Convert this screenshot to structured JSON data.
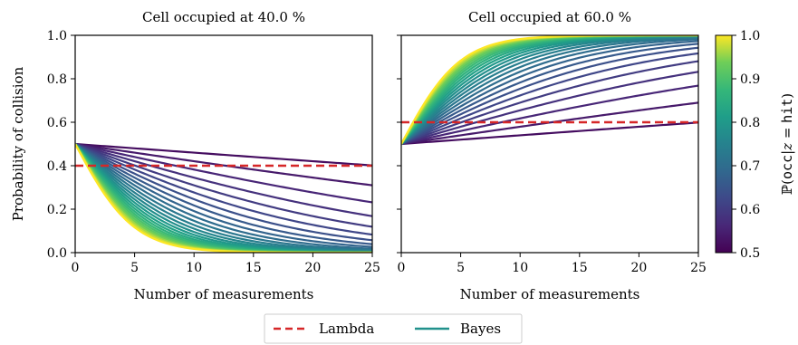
{
  "chart_data": [
    {
      "type": "line",
      "title": "Cell occupied at 40.0 %",
      "xlabel": "Number of measurements",
      "ylabel": "Probability of collision",
      "xlim": [
        0,
        25
      ],
      "ylim": [
        0.0,
        1.0
      ],
      "xticks": [
        "0",
        "5",
        "10",
        "15",
        "20",
        "25"
      ],
      "yticks": [
        "0.0",
        "0.2",
        "0.4",
        "0.6",
        "0.8",
        "1.0"
      ],
      "occupancy": 0.4,
      "lambda_value": 0.4,
      "bayes_p_hit_values": [
        0.52,
        0.54,
        0.56,
        0.58,
        0.6,
        0.62,
        0.64,
        0.66,
        0.68,
        0.7,
        0.72,
        0.74,
        0.76,
        0.78,
        0.8,
        0.82,
        0.84,
        0.86,
        0.88,
        0.9,
        0.92,
        0.94,
        0.96,
        0.98,
        1.0
      ],
      "bayes_start": 0.5
    },
    {
      "type": "line",
      "title": "Cell occupied at 60.0 %",
      "xlabel": "Number of measurements",
      "ylabel": "",
      "xlim": [
        0,
        25
      ],
      "ylim": [
        0.0,
        1.0
      ],
      "xticks": [
        "0",
        "5",
        "10",
        "15",
        "20",
        "25"
      ],
      "yticks": [],
      "occupancy": 0.6,
      "lambda_value": 0.6,
      "bayes_p_hit_values": [
        0.52,
        0.54,
        0.56,
        0.58,
        0.6,
        0.62,
        0.64,
        0.66,
        0.68,
        0.7,
        0.72,
        0.74,
        0.76,
        0.78,
        0.8,
        0.82,
        0.84,
        0.86,
        0.88,
        0.9,
        0.92,
        0.94,
        0.96,
        0.98,
        1.0
      ],
      "bayes_start": 0.5
    }
  ],
  "colorbar": {
    "label_prefix": "ℙ(",
    "label_occ": "occ",
    "label_sep": "|",
    "label_z": "z",
    "label_eq": " = ",
    "label_hit": "hit",
    "label_suffix": ")",
    "range": [
      0.5,
      1.0
    ],
    "ticks": [
      "0.5",
      "0.6",
      "0.7",
      "0.8",
      "0.9",
      "1.0"
    ],
    "colormap": "viridis"
  },
  "legend": {
    "lambda_label": "Lambda",
    "bayes_label": "Bayes",
    "lambda_color": "#d62728",
    "bayes_color": "#21918c"
  }
}
